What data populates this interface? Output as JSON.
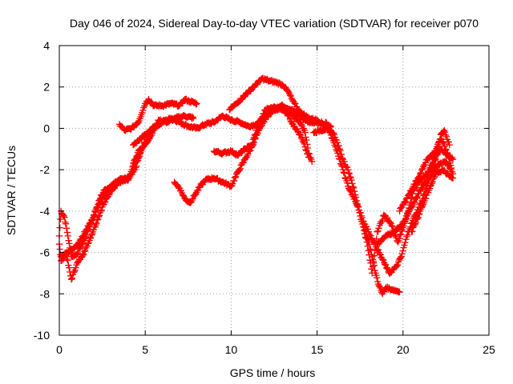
{
  "chart_data": {
    "type": "scatter",
    "title": "Day 046 of 2024, Sidereal Day-to-day VTEC variation (SDTVAR) for receiver p070",
    "xlabel": "GPS time / hours",
    "ylabel": "SDTVAR / TECUs",
    "xlim": [
      0,
      25
    ],
    "ylim": [
      -10,
      4
    ],
    "xticks": [
      "0",
      "5",
      "10",
      "15",
      "20",
      "25"
    ],
    "yticks": [
      "-10",
      "-8",
      "-6",
      "-4",
      "-2",
      "0",
      "2",
      "4"
    ],
    "grid": true,
    "marker": "+",
    "color": "#ff0000",
    "series": [
      {
        "values": [
          [
            0.0,
            -5.2
          ],
          [
            0.1,
            -4.0
          ],
          [
            0.3,
            -4.3
          ],
          [
            0.5,
            -5.2
          ],
          [
            0.7,
            -6.2
          ],
          [
            1.0,
            -6.1
          ],
          [
            1.5,
            -5.3
          ],
          [
            2.0,
            -4.2
          ],
          [
            2.5,
            -3.3
          ],
          [
            3.0,
            -2.8
          ],
          [
            3.5,
            -2.5
          ],
          [
            4.0,
            -2.4
          ]
        ]
      },
      {
        "values": [
          [
            0.0,
            -5.6
          ],
          [
            0.1,
            -6.4
          ],
          [
            0.4,
            -6.1
          ],
          [
            0.7,
            -7.3
          ],
          [
            1.0,
            -6.6
          ],
          [
            1.5,
            -5.9
          ],
          [
            2.0,
            -4.9
          ],
          [
            2.5,
            -3.8
          ],
          [
            3.0,
            -3.0
          ],
          [
            3.5,
            -2.6
          ],
          [
            4.0,
            -2.5
          ],
          [
            4.4,
            -2.0
          ],
          [
            4.8,
            -1.0
          ],
          [
            5.2,
            -0.3
          ],
          [
            5.6,
            0.1
          ],
          [
            6.0,
            0.3
          ],
          [
            6.5,
            0.5
          ],
          [
            7.0,
            0.3
          ],
          [
            7.5,
            0.1
          ],
          [
            8.0,
            0.0
          ],
          [
            8.5,
            0.2
          ],
          [
            9.0,
            0.3
          ],
          [
            9.5,
            0.6
          ],
          [
            10.0,
            0.4
          ],
          [
            10.5,
            0.3
          ],
          [
            11.0,
            0.1
          ],
          [
            11.5,
            0.2
          ],
          [
            12.0,
            0.6
          ],
          [
            12.5,
            1.0
          ],
          [
            13.0,
            1.1
          ],
          [
            13.5,
            0.9
          ],
          [
            14.0,
            0.6
          ],
          [
            14.5,
            0.3
          ],
          [
            15.0,
            0.3
          ],
          [
            15.3,
            0.2
          ]
        ]
      },
      {
        "values": [
          [
            0.1,
            -6.2
          ],
          [
            0.5,
            -6.0
          ],
          [
            1.0,
            -5.7
          ],
          [
            1.5,
            -5.0
          ],
          [
            2.0,
            -4.3
          ],
          [
            2.3,
            -3.5
          ],
          [
            2.6,
            -3.0
          ],
          [
            3.0,
            -2.8
          ],
          [
            3.3,
            -2.6
          ],
          [
            3.7,
            -2.5
          ],
          [
            4.1,
            -2.3
          ],
          [
            4.4,
            -1.5
          ],
          [
            4.7,
            -1.0
          ]
        ]
      },
      {
        "values": [
          [
            3.5,
            0.2
          ],
          [
            3.8,
            -0.1
          ],
          [
            4.2,
            0.0
          ],
          [
            4.6,
            0.3
          ],
          [
            5.0,
            1.2
          ],
          [
            5.2,
            1.4
          ],
          [
            5.5,
            1.1
          ],
          [
            6.0,
            1.1
          ],
          [
            6.5,
            1.2
          ],
          [
            7.0,
            1.1
          ],
          [
            7.3,
            1.4
          ],
          [
            7.6,
            1.3
          ],
          [
            8.0,
            1.2
          ]
        ]
      },
      {
        "values": [
          [
            4.3,
            -1.8
          ],
          [
            4.8,
            -1.0
          ],
          [
            5.3,
            -0.4
          ],
          [
            5.8,
            0.4
          ],
          [
            6.3,
            0.3
          ],
          [
            6.8,
            0.5
          ],
          [
            7.3,
            0.6
          ],
          [
            7.8,
            0.5
          ]
        ]
      },
      {
        "values": [
          [
            4.3,
            -0.8
          ],
          [
            4.6,
            -0.6
          ],
          [
            5.0,
            -0.3
          ],
          [
            5.4,
            0.0
          ],
          [
            5.8,
            0.2
          ],
          [
            6.2,
            0.4
          ]
        ]
      },
      {
        "values": [
          [
            6.7,
            -2.6
          ],
          [
            7.0,
            -2.9
          ],
          [
            7.3,
            -3.4
          ],
          [
            7.6,
            -3.6
          ],
          [
            7.9,
            -3.2
          ],
          [
            8.2,
            -2.8
          ],
          [
            8.5,
            -2.5
          ],
          [
            9.0,
            -2.4
          ],
          [
            9.5,
            -2.6
          ],
          [
            10.0,
            -2.8
          ],
          [
            10.4,
            -2.1
          ],
          [
            10.8,
            -1.5
          ],
          [
            11.2,
            -0.9
          ],
          [
            11.5,
            -0.3
          ],
          [
            12.0,
            0.5
          ],
          [
            12.5,
            0.9
          ],
          [
            13.0,
            1.0
          ],
          [
            13.5,
            0.7
          ],
          [
            14.0,
            0.3
          ],
          [
            14.3,
            -0.2
          ],
          [
            14.5,
            -1.2
          ],
          [
            14.7,
            -1.6
          ]
        ]
      },
      {
        "values": [
          [
            9.0,
            -1.1
          ],
          [
            9.5,
            -1.2
          ],
          [
            10.0,
            -1.1
          ],
          [
            10.4,
            -1.3
          ],
          [
            10.8,
            -1.0
          ],
          [
            11.2,
            -0.8
          ],
          [
            11.6,
            0.2
          ],
          [
            12.0,
            0.9
          ],
          [
            12.4,
            1.0
          ],
          [
            12.8,
            1.0
          ],
          [
            13.2,
            0.8
          ],
          [
            13.6,
            0.2
          ],
          [
            14.0,
            -0.3
          ],
          [
            14.3,
            -0.9
          ],
          [
            14.5,
            -1.4
          ]
        ]
      },
      {
        "values": [
          [
            9.9,
            0.9
          ],
          [
            10.3,
            1.2
          ],
          [
            10.8,
            1.6
          ],
          [
            11.3,
            2.0
          ],
          [
            11.8,
            2.4
          ],
          [
            12.2,
            2.3
          ],
          [
            12.7,
            2.2
          ],
          [
            13.0,
            2.1
          ],
          [
            13.3,
            1.8
          ],
          [
            13.6,
            1.3
          ],
          [
            14.0,
            0.8
          ],
          [
            14.5,
            0.5
          ],
          [
            15.0,
            0.4
          ],
          [
            15.4,
            0.2
          ],
          [
            15.8,
            0.1
          ]
        ]
      },
      {
        "values": [
          [
            14.8,
            -0.2
          ],
          [
            15.2,
            -0.1
          ],
          [
            15.6,
            0.0
          ],
          [
            16.0,
            -0.3
          ],
          [
            16.3,
            -1.0
          ],
          [
            16.5,
            -1.5
          ],
          [
            16.8,
            -2.0
          ],
          [
            17.0,
            -2.5
          ],
          [
            17.3,
            -3.5
          ],
          [
            17.6,
            -4.5
          ],
          [
            17.9,
            -5.5
          ],
          [
            18.2,
            -7.0
          ],
          [
            18.5,
            -5.0
          ],
          [
            18.9,
            -4.2
          ],
          [
            19.3,
            -4.6
          ],
          [
            19.7,
            -5.5
          ],
          [
            20.0,
            -4.8
          ],
          [
            20.3,
            -4.0
          ],
          [
            20.6,
            -3.0
          ],
          [
            21.0,
            -2.5
          ],
          [
            21.4,
            -2.2
          ],
          [
            21.8,
            -1.5
          ],
          [
            22.2,
            -1.0
          ],
          [
            22.6,
            -1.3
          ],
          [
            22.9,
            -1.5
          ]
        ]
      },
      {
        "values": [
          [
            15.5,
            0.3
          ],
          [
            15.9,
            -0.5
          ],
          [
            16.2,
            -1.2
          ],
          [
            16.5,
            -2.0
          ],
          [
            16.8,
            -2.8
          ],
          [
            17.1,
            -3.3
          ],
          [
            17.4,
            -3.8
          ],
          [
            17.7,
            -4.6
          ],
          [
            18.0,
            -5.5
          ],
          [
            18.2,
            -6.2
          ],
          [
            18.4,
            -7.0
          ],
          [
            18.6,
            -7.6
          ],
          [
            18.8,
            -8.0
          ],
          [
            19.0,
            -7.7
          ],
          [
            19.4,
            -7.8
          ],
          [
            19.8,
            -7.9
          ]
        ]
      },
      {
        "values": [
          [
            17.7,
            -4.5
          ],
          [
            18.0,
            -5.0
          ],
          [
            18.3,
            -5.5
          ],
          [
            18.6,
            -6.0
          ],
          [
            18.9,
            -6.5
          ],
          [
            19.2,
            -7.0
          ],
          [
            19.6,
            -6.7
          ],
          [
            19.9,
            -6.2
          ],
          [
            20.3,
            -5.0
          ],
          [
            20.7,
            -4.2
          ],
          [
            21.1,
            -3.5
          ],
          [
            21.5,
            -2.5
          ],
          [
            21.9,
            -1.5
          ],
          [
            22.2,
            -0.3
          ],
          [
            22.4,
            -0.1
          ],
          [
            22.7,
            -0.8
          ]
        ]
      },
      {
        "values": [
          [
            18.5,
            -5.6
          ],
          [
            19.0,
            -5.2
          ],
          [
            19.5,
            -5.0
          ],
          [
            20.0,
            -4.6
          ],
          [
            20.5,
            -3.8
          ],
          [
            21.0,
            -3.0
          ],
          [
            21.5,
            -2.4
          ],
          [
            22.0,
            -1.8
          ],
          [
            22.5,
            -1.6
          ],
          [
            22.8,
            -2.0
          ]
        ]
      },
      {
        "values": [
          [
            19.8,
            -4.0
          ],
          [
            20.2,
            -3.4
          ],
          [
            20.6,
            -2.8
          ],
          [
            21.0,
            -2.2
          ],
          [
            21.4,
            -1.5
          ],
          [
            21.8,
            -1.2
          ],
          [
            22.2,
            -0.5
          ],
          [
            22.6,
            -1.2
          ],
          [
            22.9,
            -2.2
          ]
        ]
      },
      {
        "values": [
          [
            20.5,
            -5.0
          ],
          [
            21.0,
            -4.0
          ],
          [
            21.5,
            -3.0
          ],
          [
            21.9,
            -2.2
          ],
          [
            22.3,
            -2.0
          ],
          [
            22.6,
            -2.2
          ],
          [
            22.9,
            -2.4
          ]
        ]
      }
    ]
  }
}
